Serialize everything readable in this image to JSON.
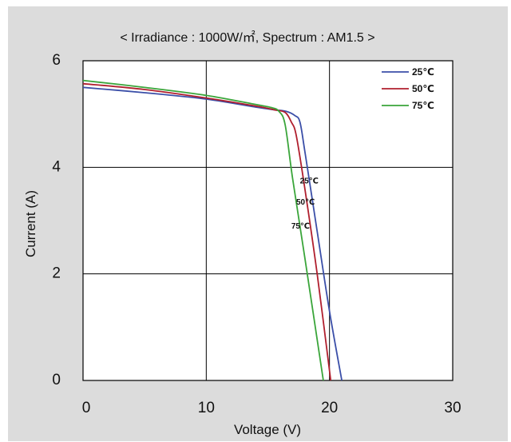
{
  "chart_data": {
    "type": "line",
    "title": "< Irradiance : 1000W/㎡, Spectrum : AM1.5 >",
    "xlabel": "Voltage (V)",
    "ylabel": "Current  (A)",
    "xlim": [
      0,
      30
    ],
    "ylim": [
      0,
      6
    ],
    "x_ticks": [
      "0",
      "10",
      "20",
      "30"
    ],
    "y_ticks": [
      "0",
      "2",
      "4",
      "6"
    ],
    "grid": true,
    "legend_position": "top-right",
    "series": [
      {
        "name": "25℃",
        "color": "#3b4fa8",
        "x": [
          0,
          5,
          10,
          14,
          15.5,
          16.5,
          17.2,
          17.6,
          18,
          19,
          20,
          21
        ],
        "y": [
          5.5,
          5.4,
          5.28,
          5.13,
          5.08,
          5.05,
          4.97,
          4.85,
          4.3,
          2.8,
          1.3,
          0
        ]
      },
      {
        "name": "50℃",
        "color": "#b01f2e",
        "x": [
          0,
          5,
          10,
          14,
          15.5,
          16.4,
          16.9,
          17.3,
          18,
          19,
          20.1
        ],
        "y": [
          5.57,
          5.46,
          5.3,
          5.15,
          5.08,
          5.03,
          4.85,
          4.6,
          3.6,
          2.0,
          0
        ]
      },
      {
        "name": "75℃",
        "color": "#3aa53a",
        "x": [
          0,
          5,
          10,
          14,
          15.3,
          15.9,
          16.4,
          17,
          18,
          19.5
        ],
        "y": [
          5.63,
          5.5,
          5.35,
          5.18,
          5.12,
          5.05,
          4.8,
          3.8,
          2.3,
          0
        ]
      }
    ],
    "annotations": [
      {
        "text": "25℃",
        "x": 17.6,
        "y": 3.7
      },
      {
        "text": "50℃",
        "x": 17.3,
        "y": 3.3
      },
      {
        "text": "75℃",
        "x": 16.9,
        "y": 2.85
      }
    ]
  }
}
